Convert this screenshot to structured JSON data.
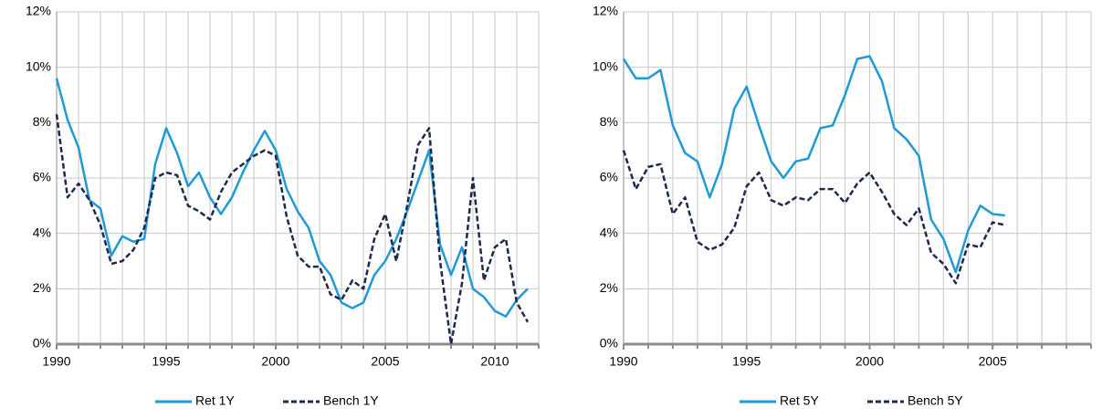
{
  "chart_data": [
    {
      "type": "line",
      "x": [
        1990,
        1990.5,
        1991,
        1991.5,
        1992,
        1992.5,
        1993,
        1993.5,
        1994,
        1994.5,
        1995,
        1995.5,
        1996,
        1996.5,
        1997,
        1997.5,
        1998,
        1998.5,
        1999,
        1999.5,
        2000,
        2000.5,
        2001,
        2001.5,
        2002,
        2002.5,
        2003,
        2003.5,
        2004,
        2004.5,
        2005,
        2005.5,
        2006,
        2006.5,
        2007,
        2007.5,
        2008,
        2008.5,
        2009,
        2009.5,
        2010,
        2010.5,
        2011,
        2011.5
      ],
      "series": [
        {
          "name": "Ret 1Y",
          "color": "#1f9ad6",
          "dash": false,
          "values": [
            9.6,
            8.1,
            7.1,
            5.2,
            4.9,
            3.2,
            3.9,
            3.7,
            3.8,
            6.5,
            7.8,
            6.9,
            5.7,
            6.2,
            5.3,
            4.7,
            5.3,
            6.2,
            7.0,
            7.7,
            7.0,
            5.6,
            4.8,
            4.2,
            3.0,
            2.5,
            1.5,
            1.3,
            1.5,
            2.5,
            3.0,
            3.8,
            4.8,
            5.9,
            7.0,
            3.6,
            2.5,
            3.5,
            2.0,
            1.7,
            1.2,
            1.0,
            1.6,
            2.0
          ]
        },
        {
          "name": "Bench 1Y",
          "color": "#1b2a4e",
          "dash": true,
          "values": [
            8.3,
            5.3,
            5.8,
            5.2,
            4.3,
            2.9,
            3.0,
            3.4,
            4.2,
            6.0,
            6.2,
            6.1,
            5.0,
            4.8,
            4.5,
            5.5,
            6.2,
            6.5,
            6.8,
            7.0,
            6.8,
            4.6,
            3.2,
            2.8,
            2.8,
            1.8,
            1.6,
            2.3,
            2.0,
            3.8,
            4.7,
            3.0,
            5.0,
            7.2,
            7.8,
            3.0,
            0.0,
            2.2,
            6.0,
            2.3,
            3.5,
            3.8,
            1.5,
            0.8
          ]
        }
      ],
      "xlim": [
        1990,
        2012
      ],
      "xticks": [
        1990,
        1995,
        2000,
        2005,
        2010
      ],
      "ylim": [
        0,
        12
      ],
      "yticks": [
        {
          "value": 0,
          "label": "0%"
        },
        {
          "value": 2,
          "label": "2%"
        },
        {
          "value": 4,
          "label": "4%"
        },
        {
          "value": 6,
          "label": "6%"
        },
        {
          "value": 8,
          "label": "8%"
        },
        {
          "value": 10,
          "label": "10%"
        },
        {
          "value": 12,
          "label": "12%"
        }
      ],
      "grid": true,
      "legend": "bottom"
    },
    {
      "type": "line",
      "x": [
        1990,
        1990.5,
        1991,
        1991.5,
        1992,
        1992.5,
        1993,
        1993.5,
        1994,
        1994.5,
        1995,
        1995.5,
        1996,
        1996.5,
        1997,
        1997.5,
        1998,
        1998.5,
        1999,
        1999.5,
        2000,
        2000.5,
        2001,
        2001.5,
        2002,
        2002.5,
        2003,
        2003.5,
        2004,
        2004.5,
        2005,
        2005.5
      ],
      "series": [
        {
          "name": "Ret 5Y",
          "color": "#1f9ad6",
          "dash": false,
          "values": [
            10.3,
            9.6,
            9.6,
            9.9,
            7.9,
            6.9,
            6.6,
            5.3,
            6.5,
            8.5,
            9.3,
            7.9,
            6.6,
            6.0,
            6.6,
            6.7,
            7.8,
            7.9,
            9.0,
            10.3,
            10.4,
            9.5,
            7.8,
            7.4,
            6.8,
            4.5,
            3.8,
            2.6,
            4.1,
            5.0,
            4.7,
            4.65
          ]
        },
        {
          "name": "Bench 5Y",
          "color": "#1b2a4e",
          "dash": true,
          "values": [
            7.0,
            5.6,
            6.4,
            6.5,
            4.7,
            5.3,
            3.7,
            3.4,
            3.6,
            4.2,
            5.7,
            6.2,
            5.2,
            5.0,
            5.3,
            5.2,
            5.6,
            5.6,
            5.1,
            5.8,
            6.2,
            5.5,
            4.7,
            4.3,
            4.9,
            3.3,
            2.9,
            2.2,
            3.6,
            3.5,
            4.4,
            4.3
          ]
        }
      ],
      "xlim": [
        1990,
        2009
      ],
      "xticks": [
        1990,
        1995,
        2000,
        2005
      ],
      "ylim": [
        0,
        12
      ],
      "yticks": [
        {
          "value": 0,
          "label": "0%"
        },
        {
          "value": 2,
          "label": "2%"
        },
        {
          "value": 4,
          "label": "4%"
        },
        {
          "value": 6,
          "label": "6%"
        },
        {
          "value": 8,
          "label": "8%"
        },
        {
          "value": 10,
          "label": "10%"
        },
        {
          "value": 12,
          "label": "12%"
        }
      ],
      "grid": true,
      "legend": "bottom"
    }
  ]
}
